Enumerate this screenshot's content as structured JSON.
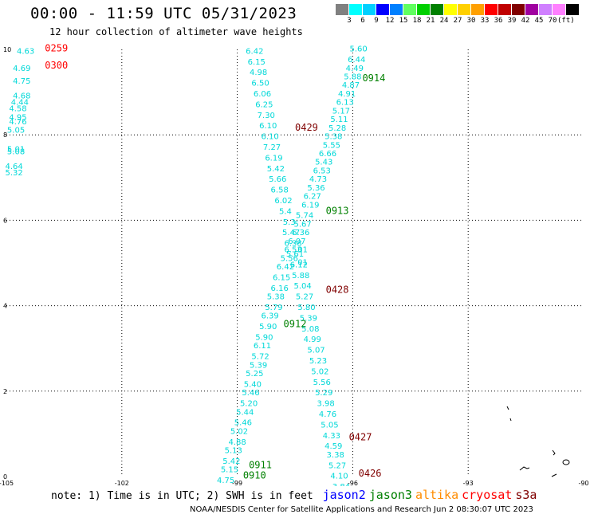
{
  "header": {
    "title": "00:00 - 11:59 UTC 05/31/2023",
    "subtitle": "12 hour collection of altimeter wave heights"
  },
  "legend": {
    "colors": [
      "#808080",
      "#00ffff",
      "#00d0ff",
      "#0000ff",
      "#0080ff",
      "#60ff60",
      "#00d000",
      "#008000",
      "#ffff00",
      "#ffd000",
      "#ffa000",
      "#ff0000",
      "#c00000",
      "#800000",
      "#a000a0",
      "#d080ff",
      "#ff80ff",
      "#000000"
    ],
    "labels": [
      "3",
      "6",
      "9",
      "12",
      "15",
      "18",
      "21",
      "24",
      "27",
      "30",
      "33",
      "36",
      "39",
      "42",
      "45",
      "70"
    ],
    "unit": "(ft)"
  },
  "axes": {
    "x_ticks": [
      "-105",
      "-102",
      "-99",
      "-96",
      "-93",
      "-90"
    ],
    "y_ticks": [
      "0",
      "2",
      "4",
      "6",
      "8",
      "10"
    ]
  },
  "map_data": {
    "lon_range": [
      -105,
      -90
    ],
    "lat_range": [
      0,
      10
    ],
    "tracks": [
      {
        "name": "track-west-edge",
        "color": "#00d8d8",
        "points": [
          {
            "lon": -104.5,
            "lat": 9.9,
            "v": "4.63"
          },
          {
            "lon": -104.6,
            "lat": 9.5,
            "v": "4.69"
          },
          {
            "lon": -104.6,
            "lat": 9.2,
            "v": "4.75"
          },
          {
            "lon": -104.6,
            "lat": 8.85,
            "v": "4.68"
          },
          {
            "lon": -104.65,
            "lat": 8.7,
            "v": "4.44"
          },
          {
            "lon": -104.7,
            "lat": 8.55,
            "v": "4.58"
          },
          {
            "lon": -104.7,
            "lat": 8.35,
            "v": "4.95"
          },
          {
            "lon": -104.7,
            "lat": 8.25,
            "v": "4.76"
          },
          {
            "lon": -104.75,
            "lat": 8.05,
            "v": "5.05"
          },
          {
            "lon": -104.75,
            "lat": 7.6,
            "v": "5.01"
          },
          {
            "lon": -104.75,
            "lat": 7.55,
            "v": "5.08"
          },
          {
            "lon": -104.8,
            "lat": 7.2,
            "v": "4.64"
          },
          {
            "lon": -104.8,
            "lat": 7.05,
            "v": "5.32"
          }
        ]
      },
      {
        "name": "track-descending",
        "color": "#00d8d8",
        "points": [
          {
            "lon": -98.55,
            "lat": 9.9,
            "v": "6.42"
          },
          {
            "lon": -98.5,
            "lat": 9.65,
            "v": "6.15"
          },
          {
            "lon": -98.45,
            "lat": 9.4,
            "v": "4.98"
          },
          {
            "lon": -98.4,
            "lat": 9.15,
            "v": "6.50"
          },
          {
            "lon": -98.35,
            "lat": 8.9,
            "v": "6.06"
          },
          {
            "lon": -98.3,
            "lat": 8.65,
            "v": "6.25"
          },
          {
            "lon": -98.25,
            "lat": 8.4,
            "v": "7.30"
          },
          {
            "lon": -98.2,
            "lat": 8.15,
            "v": "6.10"
          },
          {
            "lon": -98.15,
            "lat": 7.9,
            "v": "6.10"
          },
          {
            "lon": -98.1,
            "lat": 7.65,
            "v": "7.27"
          },
          {
            "lon": -98.05,
            "lat": 7.4,
            "v": "6.19"
          },
          {
            "lon": -98.0,
            "lat": 7.15,
            "v": "5.42"
          },
          {
            "lon": -97.95,
            "lat": 6.9,
            "v": "5.66"
          },
          {
            "lon": -97.9,
            "lat": 6.65,
            "v": "6.58"
          },
          {
            "lon": -97.8,
            "lat": 6.4,
            "v": "6.02"
          },
          {
            "lon": -97.75,
            "lat": 6.15,
            "v": "5.4"
          },
          {
            "lon": -97.65,
            "lat": 5.9,
            "v": "5.3"
          },
          {
            "lon": -97.6,
            "lat": 5.65,
            "v": "5.47"
          },
          {
            "lon": -97.55,
            "lat": 5.4,
            "v": "6.38"
          },
          {
            "lon": -97.5,
            "lat": 5.15,
            "v": "5.61"
          },
          {
            "lon": -97.4,
            "lat": 4.9,
            "v": "6.12"
          },
          {
            "lon": -97.35,
            "lat": 4.65,
            "v": "5.88"
          },
          {
            "lon": -97.3,
            "lat": 4.4,
            "v": "5.04"
          },
          {
            "lon": -97.25,
            "lat": 4.15,
            "v": "5.27"
          },
          {
            "lon": -97.2,
            "lat": 3.9,
            "v": "5.80"
          },
          {
            "lon": -97.15,
            "lat": 3.65,
            "v": "5.39"
          },
          {
            "lon": -97.1,
            "lat": 3.4,
            "v": "5.08"
          },
          {
            "lon": -97.05,
            "lat": 3.15,
            "v": "4.99"
          },
          {
            "lon": -96.95,
            "lat": 2.9,
            "v": "5.07"
          },
          {
            "lon": -96.9,
            "lat": 2.65,
            "v": "5.23"
          },
          {
            "lon": -96.85,
            "lat": 2.4,
            "v": "5.02"
          },
          {
            "lon": -96.8,
            "lat": 2.15,
            "v": "5.56"
          },
          {
            "lon": -96.75,
            "lat": 1.9,
            "v": "5.29"
          },
          {
            "lon": -96.7,
            "lat": 1.65,
            "v": "3.98"
          },
          {
            "lon": -96.65,
            "lat": 1.4,
            "v": "4.76"
          },
          {
            "lon": -96.6,
            "lat": 1.15,
            "v": "5.05"
          },
          {
            "lon": -96.55,
            "lat": 0.9,
            "v": "4.33"
          },
          {
            "lon": -96.5,
            "lat": 0.65,
            "v": "4.59"
          },
          {
            "lon": -96.45,
            "lat": 0.45,
            "v": "3.38"
          },
          {
            "lon": -96.4,
            "lat": 0.2,
            "v": "5.27"
          },
          {
            "lon": -96.35,
            "lat": -0.05,
            "v": "4.10"
          },
          {
            "lon": -96.3,
            "lat": -0.3,
            "v": "3.84"
          }
        ]
      },
      {
        "name": "track-ascending",
        "color": "#00d8d8",
        "points": [
          {
            "lon": -95.85,
            "lat": 9.95,
            "v": "5.60"
          },
          {
            "lon": -95.9,
            "lat": 9.7,
            "v": "6.44"
          },
          {
            "lon": -95.95,
            "lat": 9.5,
            "v": "4.49"
          },
          {
            "lon": -96.0,
            "lat": 9.3,
            "v": "5.88"
          },
          {
            "lon": -96.05,
            "lat": 9.1,
            "v": "4.87"
          },
          {
            "lon": -96.15,
            "lat": 8.9,
            "v": "4.91"
          },
          {
            "lon": -96.2,
            "lat": 8.7,
            "v": "6.13"
          },
          {
            "lon": -96.3,
            "lat": 8.5,
            "v": "5.17"
          },
          {
            "lon": -96.35,
            "lat": 8.3,
            "v": "5.11"
          },
          {
            "lon": -96.4,
            "lat": 8.1,
            "v": "5.28"
          },
          {
            "lon": -96.5,
            "lat": 7.9,
            "v": "5.38"
          },
          {
            "lon": -96.55,
            "lat": 7.7,
            "v": "5.55"
          },
          {
            "lon": -96.65,
            "lat": 7.5,
            "v": "6.66"
          },
          {
            "lon": -96.75,
            "lat": 7.3,
            "v": "5.43"
          },
          {
            "lon": -96.8,
            "lat": 7.1,
            "v": "6.53"
          },
          {
            "lon": -96.9,
            "lat": 6.9,
            "v": "4.73"
          },
          {
            "lon": -96.95,
            "lat": 6.7,
            "v": "5.36"
          },
          {
            "lon": -97.05,
            "lat": 6.5,
            "v": "6.27"
          },
          {
            "lon": -97.1,
            "lat": 6.3,
            "v": "6.19"
          },
          {
            "lon": -97.25,
            "lat": 6.05,
            "v": "5.74"
          },
          {
            "lon": -97.3,
            "lat": 5.85,
            "v": "5.67"
          },
          {
            "lon": -97.35,
            "lat": 5.65,
            "v": "6.36"
          },
          {
            "lon": -97.45,
            "lat": 5.45,
            "v": "6.07"
          },
          {
            "lon": -97.55,
            "lat": 5.25,
            "v": "6.53"
          },
          {
            "lon": -97.65,
            "lat": 5.05,
            "v": "5.56"
          },
          {
            "lon": -97.75,
            "lat": 4.85,
            "v": "6.42"
          },
          {
            "lon": -97.85,
            "lat": 4.6,
            "v": "6.15"
          },
          {
            "lon": -97.9,
            "lat": 4.35,
            "v": "6.16"
          },
          {
            "lon": -98.0,
            "lat": 4.15,
            "v": "5.38"
          },
          {
            "lon": -98.05,
            "lat": 3.9,
            "v": "5.79"
          },
          {
            "lon": -98.15,
            "lat": 3.7,
            "v": "6.39"
          },
          {
            "lon": -98.2,
            "lat": 3.45,
            "v": "5.90"
          },
          {
            "lon": -98.3,
            "lat": 3.2,
            "v": "5.90"
          },
          {
            "lon": -98.35,
            "lat": 3.0,
            "v": "6.11"
          },
          {
            "lon": -98.4,
            "lat": 2.75,
            "v": "5.72"
          },
          {
            "lon": -98.45,
            "lat": 2.55,
            "v": "5.39"
          },
          {
            "lon": -98.55,
            "lat": 2.35,
            "v": "5.25"
          },
          {
            "lon": -98.6,
            "lat": 2.1,
            "v": "5.40"
          },
          {
            "lon": -98.65,
            "lat": 1.9,
            "v": "5.46"
          },
          {
            "lon": -98.7,
            "lat": 1.65,
            "v": "5.20"
          },
          {
            "lon": -98.8,
            "lat": 1.45,
            "v": "5.44"
          },
          {
            "lon": -98.85,
            "lat": 1.2,
            "v": "5.46"
          },
          {
            "lon": -98.95,
            "lat": 1.0,
            "v": "5.02"
          },
          {
            "lon": -99.0,
            "lat": 0.75,
            "v": "4.88"
          },
          {
            "lon": -99.1,
            "lat": 0.55,
            "v": "5.13"
          },
          {
            "lon": -99.15,
            "lat": 0.3,
            "v": "5.42"
          },
          {
            "lon": -99.2,
            "lat": 0.1,
            "v": "5.15"
          },
          {
            "lon": -99.3,
            "lat": -0.15,
            "v": "4.75"
          },
          {
            "lon": -99.35,
            "lat": -0.35,
            "v": "5.05"
          },
          {
            "lon": -99.45,
            "lat": -0.6,
            "v": "5.52"
          },
          {
            "lon": -99.5,
            "lat": -0.8,
            "v": "4.68"
          },
          {
            "lon": -99.6,
            "lat": -1.0,
            "v": "5.17"
          }
        ]
      },
      {
        "name": "track-blue",
        "color": "#0000e0",
        "points": [
          {
            "lon": -97.3,
            "lat": 5.25,
            "v": "01"
          },
          {
            "lon": -97.3,
            "lat": 4.95,
            "v": "01"
          }
        ]
      }
    ],
    "time_labels": [
      {
        "lon": -104.0,
        "lat": 9.95,
        "t": "0259",
        "color": "#ff0000"
      },
      {
        "lon": -104.0,
        "lat": 9.55,
        "t": "0300",
        "color": "#ff0000"
      },
      {
        "lon": -95.75,
        "lat": 9.25,
        "t": "0914",
        "color": "#008000"
      },
      {
        "lon": -97.5,
        "lat": 8.1,
        "t": "0429",
        "color": "#800000"
      },
      {
        "lon": -96.7,
        "lat": 6.15,
        "t": "0913",
        "color": "#008000"
      },
      {
        "lon": -96.7,
        "lat": 4.3,
        "t": "0428",
        "color": "#800000"
      },
      {
        "lon": -97.8,
        "lat": 3.5,
        "t": "0912",
        "color": "#008000"
      },
      {
        "lon": -96.1,
        "lat": 0.85,
        "t": "0427",
        "color": "#800000"
      },
      {
        "lon": -98.7,
        "lat": 0.2,
        "t": "0911",
        "color": "#008000"
      },
      {
        "lon": -98.85,
        "lat": -0.05,
        "t": "0910",
        "color": "#008000"
      },
      {
        "lon": -95.85,
        "lat": 0.0,
        "t": "0426",
        "color": "#800000"
      }
    ]
  },
  "footer": {
    "note": "note: 1) Time is in UTC; 2) SWH is in feet",
    "satellites": [
      {
        "name": "jason2",
        "color": "#0000ff"
      },
      {
        "name": "jason3",
        "color": "#008000"
      },
      {
        "name": "altika",
        "color": "#ff8c00"
      },
      {
        "name": "cryosat",
        "color": "#ff0000"
      },
      {
        "name": "s3a",
        "color": "#800000"
      }
    ],
    "credit": "NOAA/NESDIS Center for Satellite Applications and Research    Jun  2 08:30:07 UTC 2023"
  }
}
